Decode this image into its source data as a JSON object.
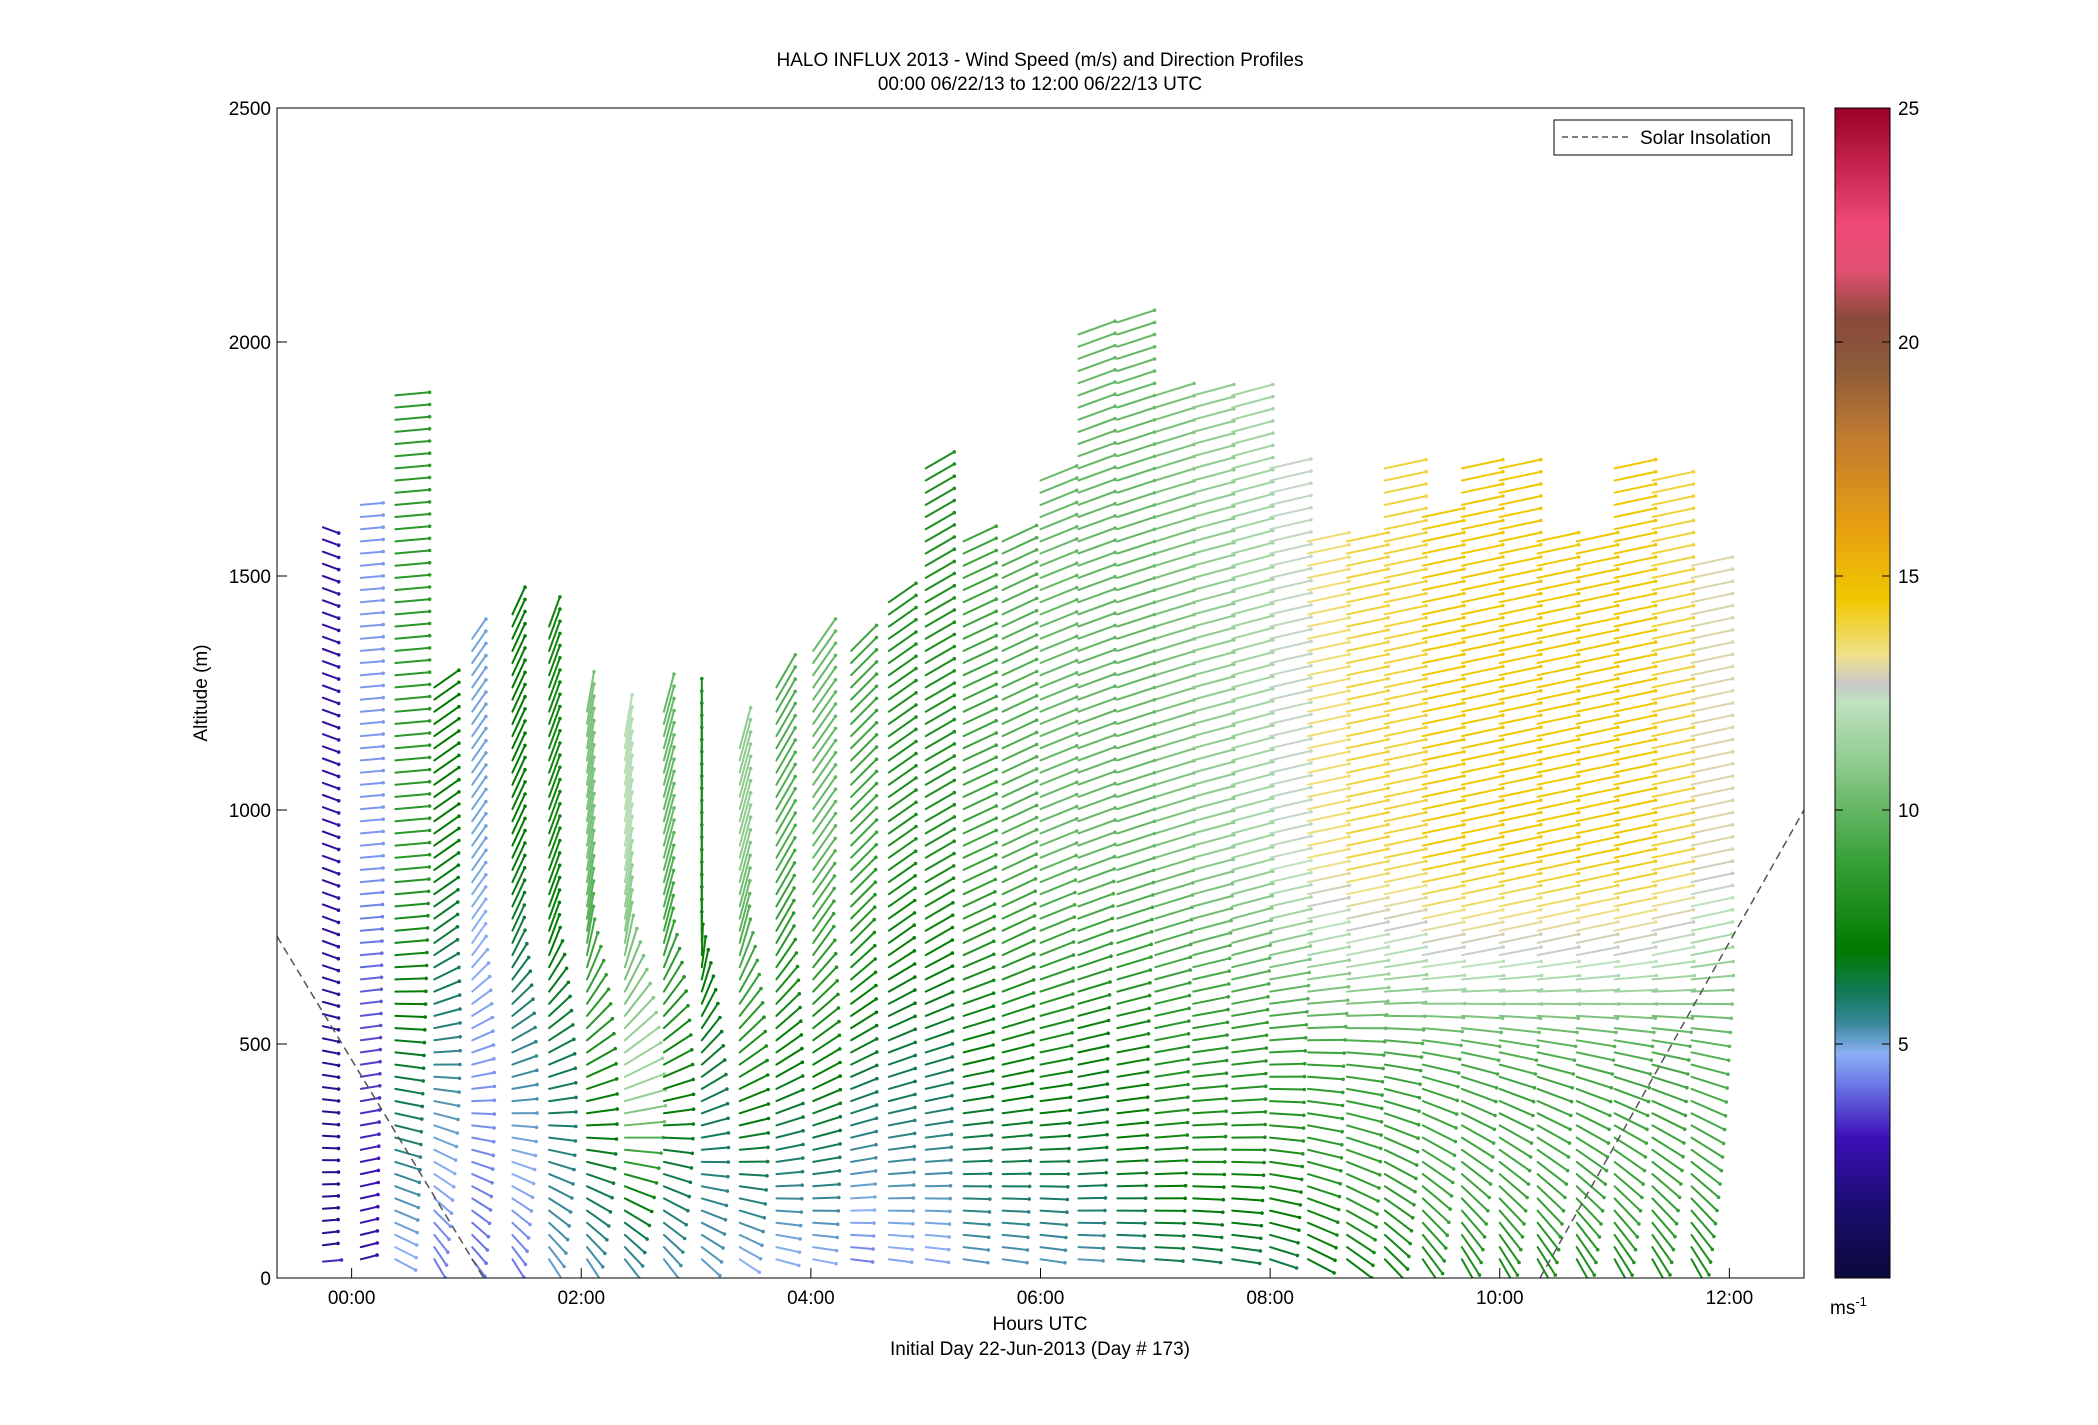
{
  "chart_data": {
    "type": "wind-barb-profile",
    "title": "HALO INFLUX 2013 - Wind Speed (m/s) and Direction Profiles",
    "subtitle": "00:00 06/22/13 to 12:00 06/22/13  UTC",
    "xlabel": "Hours UTC",
    "xlabel2": "Initial Day 22-Jun-2013 (Day # 173)",
    "ylabel": "Altitude (m)",
    "xlim": [
      -0.65,
      12.65
    ],
    "ylim": [
      0,
      2500
    ],
    "x_ticks": [
      0,
      2,
      4,
      6,
      8,
      10,
      12
    ],
    "x_tick_labels": [
      "00:00",
      "02:00",
      "04:00",
      "06:00",
      "08:00",
      "10:00",
      "12:00"
    ],
    "y_ticks": [
      0,
      500,
      1000,
      1500,
      2000,
      2500
    ],
    "y_tick_labels": [
      "0",
      "500",
      "1000",
      "1500",
      "2000",
      "2500"
    ],
    "legend": {
      "label": "Solar Insolation",
      "position": "top-right",
      "line_color": "#555555"
    },
    "colorbar": {
      "range": [
        0,
        25
      ],
      "ticks": [
        5,
        10,
        15,
        20,
        25
      ],
      "tick_labels": [
        "5",
        "10",
        "15",
        "20",
        "25"
      ],
      "unit_label": "ms",
      "unit_exponent": "-1",
      "stops": [
        [
          0.0,
          "#0a0a3a"
        ],
        [
          1.5,
          "#1a0d6e"
        ],
        [
          3.0,
          "#3d10b8"
        ],
        [
          4.2,
          "#6e7ee8"
        ],
        [
          4.8,
          "#8bb0f5"
        ],
        [
          5.4,
          "#3e8aa0"
        ],
        [
          6.0,
          "#157a62"
        ],
        [
          7.0,
          "#007a00"
        ],
        [
          9.0,
          "#3aa23a"
        ],
        [
          11.0,
          "#8ecb8e"
        ],
        [
          12.3,
          "#bfe2bf"
        ],
        [
          12.7,
          "#c8c8c8"
        ],
        [
          13.3,
          "#efe18a"
        ],
        [
          14.5,
          "#f0c800"
        ],
        [
          16.0,
          "#e8a010"
        ],
        [
          18.0,
          "#c07a30"
        ],
        [
          19.5,
          "#8a5a3a"
        ],
        [
          20.5,
          "#8a4a3a"
        ],
        [
          21.5,
          "#e05070"
        ],
        [
          22.5,
          "#f04a78"
        ],
        [
          25.0,
          "#9b0025"
        ]
      ]
    },
    "solar_insolation_segments": [
      [
        [
          -0.65,
          730
        ],
        [
          1.15,
          0
        ]
      ],
      [
        [
          10.35,
          0
        ],
        [
          12.65,
          1000
        ]
      ]
    ],
    "wind_profiles": [
      {
        "t": -0.25,
        "z0": 35,
        "dz": 40,
        "n": 1,
        "spd": [
          3.2,
          3.2,
          0
        ],
        "dir": [
          265,
          265,
          0
        ]
      },
      {
        "t": -0.25,
        "z0": 70,
        "dz": 26,
        "n": 60,
        "spd": [
          2.0,
          2.6,
          0
        ],
        "dir": [
          260,
          290,
          0
        ]
      },
      {
        "t": 0.08,
        "z0": 40,
        "dz": 26,
        "n": 63,
        "spd": [
          2.5,
          4.5,
          0
        ],
        "dir": [
          255,
          265,
          0
        ]
      },
      {
        "t": 0.38,
        "z0": 40,
        "dz": 26,
        "n": 72,
        "spd": [
          4.5,
          8.5,
          0
        ],
        "dir": [
          300,
          265,
          0
        ]
      },
      {
        "t": 0.72,
        "z0": 40,
        "dz": 26,
        "n": 48,
        "spd": [
          4.0,
          7.0,
          0
        ],
        "dir": [
          335,
          235,
          0
        ]
      },
      {
        "t": 1.05,
        "z0": 40,
        "dz": 26,
        "n": 52,
        "spd": [
          4.0,
          5.0,
          0
        ],
        "dir": [
          330,
          215,
          0
        ]
      },
      {
        "t": 1.4,
        "z0": 40,
        "dz": 26,
        "n": 54,
        "spd": [
          4.0,
          7.0,
          0
        ],
        "dir": [
          335,
          205,
          0
        ]
      },
      {
        "t": 1.72,
        "z0": 40,
        "dz": 26,
        "n": 53,
        "spd": [
          5.0,
          7.5,
          0
        ],
        "dir": [
          335,
          200,
          0
        ]
      },
      {
        "t": 2.05,
        "z0": 40,
        "dz": 26,
        "n": 46,
        "spd": [
          5.0,
          10.5,
          0
        ],
        "dir": [
          335,
          190,
          0
        ]
      },
      {
        "t": 2.38,
        "z0": 40,
        "dz": 26,
        "n": 44,
        "spd": [
          5.0,
          12.0,
          13.5
        ],
        "dir": [
          330,
          190,
          0
        ]
      },
      {
        "t": 2.72,
        "z0": 40,
        "dz": 26,
        "n": 46,
        "spd": [
          5.0,
          10.0,
          0
        ],
        "dir": [
          330,
          195,
          0
        ]
      },
      {
        "t": 3.05,
        "z0": 40,
        "dz": 26,
        "n": 46,
        "spd": [
          5.0,
          8.0,
          0
        ],
        "dir": [
          320,
          180,
          0
        ]
      },
      {
        "t": 3.38,
        "z0": 40,
        "dz": 26,
        "n": 43,
        "spd": [
          4.5,
          11.0,
          0
        ],
        "dir": [
          310,
          195,
          0
        ]
      },
      {
        "t": 3.7,
        "z0": 40,
        "dz": 26,
        "n": 48,
        "spd": [
          4.5,
          9.5,
          0
        ],
        "dir": [
          290,
          210,
          0
        ]
      },
      {
        "t": 4.02,
        "z0": 40,
        "dz": 26,
        "n": 51,
        "spd": [
          4.5,
          10.0,
          0
        ],
        "dir": [
          285,
          215,
          0
        ]
      },
      {
        "t": 4.35,
        "z0": 40,
        "dz": 26,
        "n": 51,
        "spd": [
          4.0,
          9.0,
          0
        ],
        "dir": [
          280,
          225,
          0
        ]
      },
      {
        "t": 4.68,
        "z0": 40,
        "dz": 26,
        "n": 55,
        "spd": [
          4.5,
          8.0,
          0
        ],
        "dir": [
          280,
          235,
          0
        ]
      },
      {
        "t": 5.0,
        "z0": 40,
        "dz": 26,
        "n": 66,
        "spd": [
          4.5,
          8.0,
          0
        ],
        "dir": [
          280,
          240,
          0
        ]
      },
      {
        "t": 5.33,
        "z0": 40,
        "dz": 26,
        "n": 60,
        "spd": [
          5.0,
          9.0,
          0
        ],
        "dir": [
          280,
          245,
          0
        ]
      },
      {
        "t": 5.67,
        "z0": 40,
        "dz": 26,
        "n": 60,
        "spd": [
          5.0,
          9.5,
          0
        ],
        "dir": [
          280,
          245,
          0
        ]
      },
      {
        "t": 6.0,
        "z0": 40,
        "dz": 26,
        "n": 65,
        "spd": [
          5.0,
          10.0,
          0
        ],
        "dir": [
          280,
          248,
          0
        ]
      },
      {
        "t": 6.33,
        "z0": 40,
        "dz": 26,
        "n": 77,
        "spd": [
          5.0,
          10.0,
          6.5
        ],
        "dir": [
          275,
          250,
          0
        ]
      },
      {
        "t": 6.67,
        "z0": 40,
        "dz": 26,
        "n": 78,
        "spd": [
          5.5,
          10.0,
          7.0
        ],
        "dir": [
          275,
          252,
          0
        ]
      },
      {
        "t": 7.0,
        "z0": 40,
        "dz": 26,
        "n": 72,
        "spd": [
          6.0,
          10.5,
          8.0
        ],
        "dir": [
          275,
          253,
          0
        ]
      },
      {
        "t": 7.33,
        "z0": 40,
        "dz": 26,
        "n": 72,
        "spd": [
          6.0,
          11.0,
          8.0
        ],
        "dir": [
          278,
          255,
          0
        ]
      },
      {
        "t": 7.67,
        "z0": 40,
        "dz": 26,
        "n": 72,
        "spd": [
          6.0,
          11.5,
          8.0
        ],
        "dir": [
          280,
          255,
          0
        ]
      },
      {
        "t": 8.0,
        "z0": 40,
        "dz": 26,
        "n": 66,
        "spd": [
          6.0,
          12.5,
          8.0
        ],
        "dir": [
          290,
          257,
          0
        ]
      },
      {
        "t": 8.33,
        "z0": 40,
        "dz": 26,
        "n": 60,
        "spd": [
          6.5,
          13.5,
          8.0
        ],
        "dir": [
          300,
          258,
          0
        ]
      },
      {
        "t": 8.67,
        "z0": 40,
        "dz": 26,
        "n": 60,
        "spd": [
          7.0,
          14.0,
          8.0
        ],
        "dir": [
          310,
          258,
          0
        ]
      },
      {
        "t": 9.0,
        "z0": 40,
        "dz": 26,
        "n": 66,
        "spd": [
          7.0,
          14.0,
          8.0
        ],
        "dir": [
          320,
          258,
          0
        ]
      },
      {
        "t": 9.33,
        "z0": 40,
        "dz": 26,
        "n": 62,
        "spd": [
          7.5,
          14.5,
          8.0
        ],
        "dir": [
          330,
          258,
          0
        ]
      },
      {
        "t": 9.67,
        "z0": 40,
        "dz": 26,
        "n": 66,
        "spd": [
          7.5,
          14.5,
          8.0
        ],
        "dir": [
          335,
          258,
          0
        ]
      },
      {
        "t": 10.0,
        "z0": 40,
        "dz": 26,
        "n": 66,
        "spd": [
          7.5,
          14.5,
          8.0
        ],
        "dir": [
          335,
          258,
          0
        ]
      },
      {
        "t": 10.33,
        "z0": 40,
        "dz": 26,
        "n": 60,
        "spd": [
          7.5,
          14.5,
          8.0
        ],
        "dir": [
          335,
          258,
          0
        ]
      },
      {
        "t": 10.67,
        "z0": 40,
        "dz": 26,
        "n": 60,
        "spd": [
          7.5,
          14.5,
          8.0
        ],
        "dir": [
          335,
          258,
          0
        ]
      },
      {
        "t": 11.0,
        "z0": 40,
        "dz": 26,
        "n": 66,
        "spd": [
          7.5,
          14.5,
          8.0
        ],
        "dir": [
          335,
          258,
          0
        ]
      },
      {
        "t": 11.33,
        "z0": 40,
        "dz": 26,
        "n": 65,
        "spd": [
          7.5,
          14.0,
          8.0
        ],
        "dir": [
          335,
          258,
          0
        ]
      },
      {
        "t": 11.67,
        "z0": 40,
        "dz": 26,
        "n": 58,
        "spd": [
          7.5,
          13.0,
          9.0
        ],
        "dir": [
          335,
          258,
          0
        ]
      }
    ]
  }
}
